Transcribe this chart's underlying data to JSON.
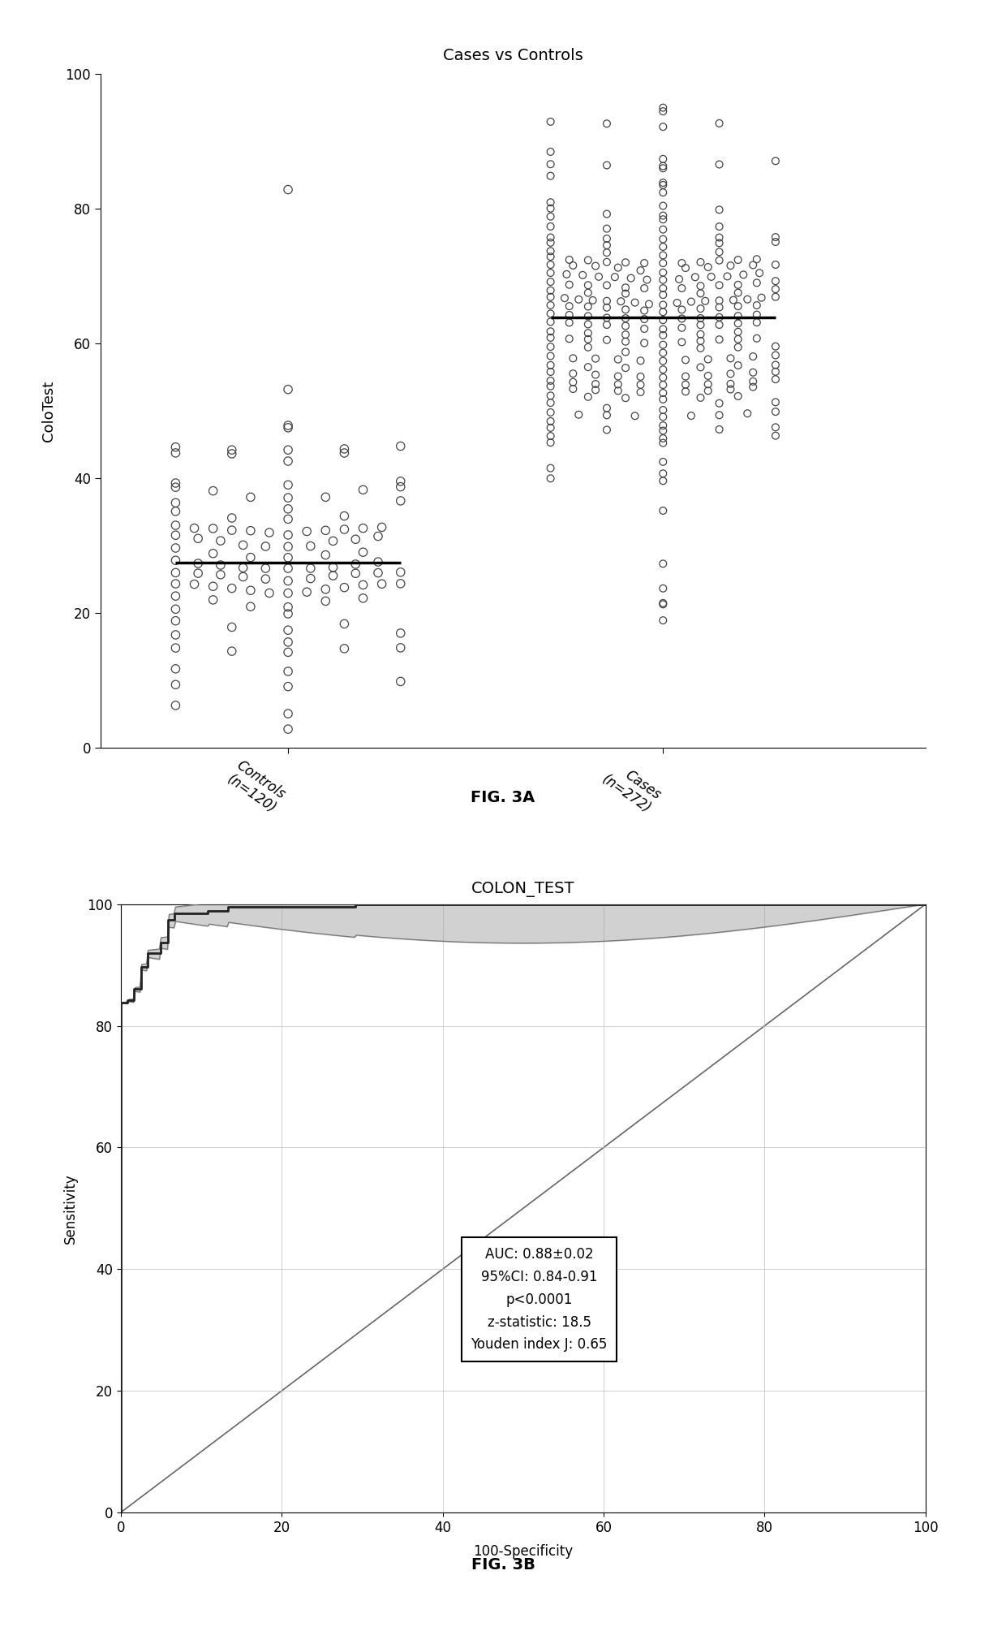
{
  "fig3a": {
    "title": "Cases vs Controls",
    "ylabel": "ColoTest",
    "xlabel_controls": "Controls\n(n=120)",
    "xlabel_cases": "Cases\n(n=272)",
    "ylim": [
      0,
      100
    ],
    "yticks": [
      0,
      20,
      40,
      60,
      80,
      100
    ],
    "controls_n": 120,
    "controls_median": 29,
    "cases_n": 272,
    "cases_median": 63
  },
  "fig3b": {
    "title": "COLON_TEST",
    "xlabel": "100-Specificity",
    "ylabel": "Sensitivity",
    "xlim": [
      0,
      100
    ],
    "ylim": [
      0,
      100
    ],
    "xticks": [
      0,
      20,
      40,
      60,
      80,
      100
    ],
    "yticks": [
      0,
      20,
      40,
      60,
      80,
      100
    ],
    "annotation": "AUC: 0.88±0.02\n95%CI: 0.84-0.91\np<0.0001\nz-statistic: 18.5\nYouden index J: 0.65",
    "fig_label_a": "FIG. 3A",
    "fig_label_b": "FIG. 3B"
  }
}
